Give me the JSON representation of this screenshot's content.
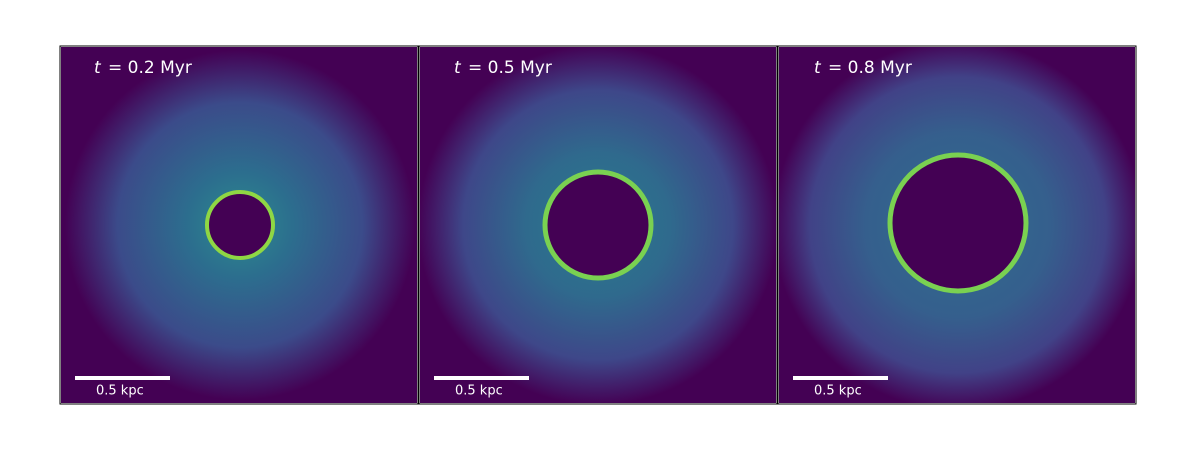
{
  "panels": [
    {
      "symbol": "t",
      "text": "= 0.2 Myr",
      "scale_label": "0.5 kpc"
    },
    {
      "symbol": "t",
      "text": "= 0.5 Myr",
      "scale_label": "0.5 kpc"
    },
    {
      "symbol": "t",
      "text": "= 0.8 Myr",
      "scale_label": "0.5 kpc"
    }
  ]
}
